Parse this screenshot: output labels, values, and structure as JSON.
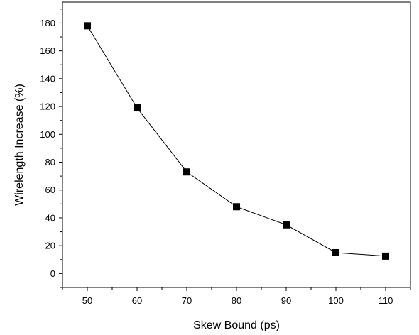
{
  "chart_data": {
    "type": "line",
    "title": "",
    "xlabel": "Skew Bound (ps)",
    "ylabel": "Wirelength Increase (%)",
    "xlim": [
      45,
      115
    ],
    "ylim": [
      -10,
      195
    ],
    "x_ticks": [
      50,
      60,
      70,
      80,
      90,
      100,
      110
    ],
    "y_ticks": [
      0,
      20,
      40,
      60,
      80,
      100,
      120,
      140,
      160,
      180
    ],
    "grid": false,
    "legend": "none",
    "marker": "square",
    "line_color": "#000000",
    "marker_color": "#000000",
    "series": [
      {
        "x": [
          50,
          60,
          70,
          80,
          90,
          100,
          110
        ],
        "values": [
          178,
          119,
          73,
          48,
          35,
          15,
          12.5
        ]
      }
    ]
  }
}
